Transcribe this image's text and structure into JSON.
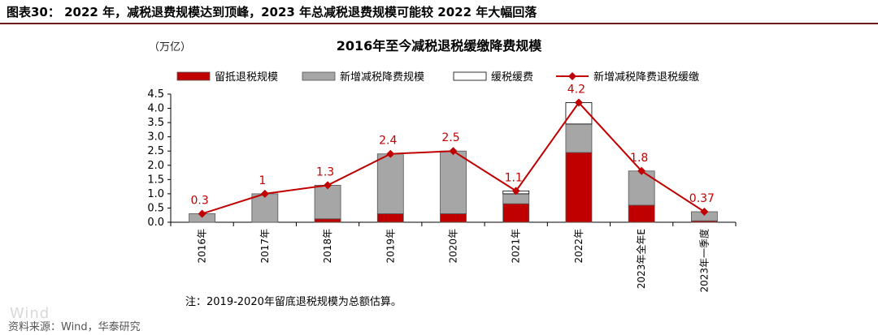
{
  "header": {
    "figure_title": "图表30： 2022 年，减税退费规模达到顶峰，2023 年总减税退费规模可能较 2022 年大幅回落"
  },
  "chart_data": {
    "type": "bar",
    "title": "2016年至今减税退税缓缴降费规模",
    "unit": "（万亿）",
    "categories": [
      "2016年",
      "2017年",
      "2018年",
      "2019年",
      "2020年",
      "2021年",
      "2022年",
      "2023年全年E",
      "2023年一季度"
    ],
    "series": [
      {
        "name": "留抵退税规模",
        "kind": "bar",
        "color": "#c00000",
        "values": [
          0,
          0,
          0.12,
          0.3,
          0.3,
          0.65,
          2.45,
          0.6,
          0.05
        ]
      },
      {
        "name": "新增减税降费规模",
        "kind": "bar",
        "color": "#a6a6a6",
        "values": [
          0.3,
          1.0,
          1.18,
          2.1,
          2.2,
          0.35,
          1.0,
          1.2,
          0.32
        ]
      },
      {
        "name": "缓税缓费",
        "kind": "bar",
        "color": "#ffffff",
        "values": [
          0,
          0,
          0,
          0,
          0,
          0.1,
          0.75,
          0,
          0
        ]
      },
      {
        "name": "新增减税降费退税缓缴",
        "kind": "line",
        "color": "#c00000",
        "values": [
          0.3,
          1,
          1.3,
          2.4,
          2.5,
          1.1,
          4.2,
          1.8,
          0.37
        ]
      }
    ],
    "data_labels": [
      "0.3",
      "1",
      "1.3",
      "2.4",
      "2.5",
      "1.1",
      "4.2",
      "1.8",
      "0.37"
    ],
    "ylim": [
      0,
      4.5
    ],
    "yticks": [
      "0.0",
      "0.5",
      "1.0",
      "1.5",
      "2.0",
      "2.5",
      "3.0",
      "3.5",
      "4.0",
      "4.5"
    ],
    "legend_position": "top"
  },
  "footer": {
    "note": "注：2019-2020年留底退税规模为总额估算。",
    "source": "资料来源：Wind，华泰研究",
    "watermark": "Wind"
  }
}
